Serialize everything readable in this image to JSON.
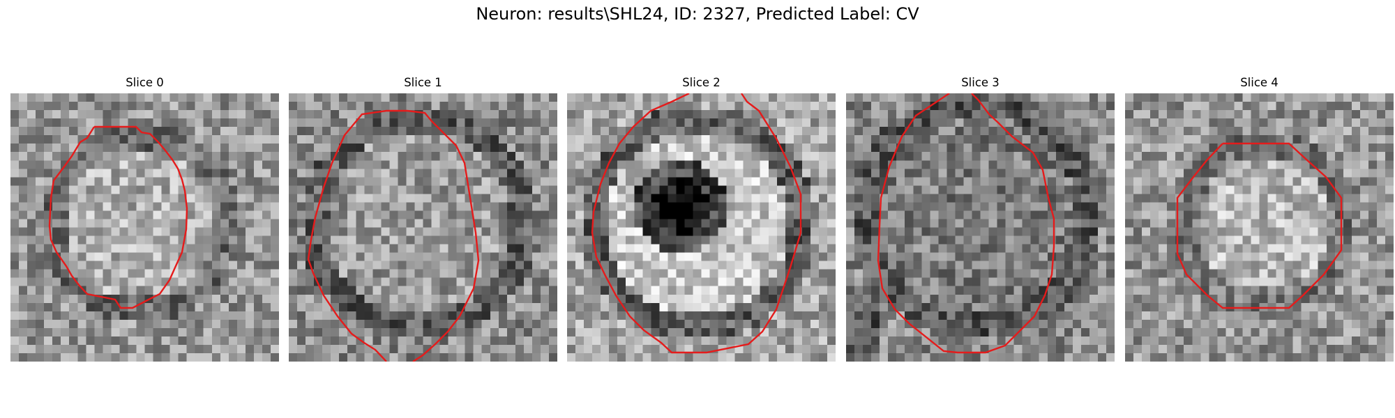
{
  "figure": {
    "title": "Neuron: results\\SHL24, ID: 2327, Predicted Label: CV"
  },
  "panels": [
    {
      "title": "Slice 0"
    },
    {
      "title": "Slice 1"
    },
    {
      "title": "Slice 2"
    },
    {
      "title": "Slice 3"
    },
    {
      "title": "Slice 4"
    }
  ],
  "colors": {
    "background": "#ffffff",
    "outline": "#e51b1b",
    "colormap": "gray"
  }
}
